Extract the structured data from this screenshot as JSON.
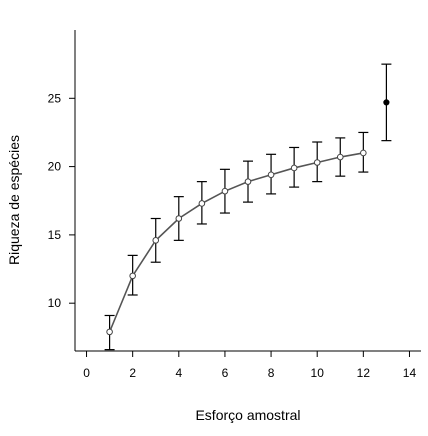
{
  "chart_data": {
    "type": "line",
    "title": "",
    "xlabel": "Esforço amostral",
    "ylabel": "Riqueza de espécies",
    "xlim": [
      -0.5,
      14.5
    ],
    "ylim": [
      6.5,
      30
    ],
    "xticks": [
      "0",
      "2",
      "4",
      "6",
      "8",
      "10",
      "12",
      "14"
    ],
    "yticks": [
      "10",
      "15",
      "20",
      "25"
    ],
    "grid": false,
    "legend": "none",
    "series": [
      {
        "style": "line-open-markers",
        "color": "#555555",
        "points": [
          {
            "x": 1,
            "y": 7.9,
            "lower": 6.6,
            "upper": 9.1
          },
          {
            "x": 2,
            "y": 12.0,
            "lower": 10.6,
            "upper": 13.5
          },
          {
            "x": 3,
            "y": 14.6,
            "lower": 13.0,
            "upper": 16.2
          },
          {
            "x": 4,
            "y": 16.2,
            "lower": 14.6,
            "upper": 17.8
          },
          {
            "x": 5,
            "y": 17.3,
            "lower": 15.8,
            "upper": 18.9
          },
          {
            "x": 6,
            "y": 18.2,
            "lower": 16.6,
            "upper": 19.8
          },
          {
            "x": 7,
            "y": 18.9,
            "lower": 17.4,
            "upper": 20.4
          },
          {
            "x": 8,
            "y": 19.4,
            "lower": 18.0,
            "upper": 20.9
          },
          {
            "x": 9,
            "y": 19.9,
            "lower": 18.5,
            "upper": 21.4
          },
          {
            "x": 10,
            "y": 20.3,
            "lower": 18.9,
            "upper": 21.8
          },
          {
            "x": 11,
            "y": 20.7,
            "lower": 19.3,
            "upper": 22.1
          },
          {
            "x": 12,
            "y": 21.0,
            "lower": 19.6,
            "upper": 22.5
          }
        ]
      },
      {
        "style": "filled-marker",
        "color": "#000000",
        "points": [
          {
            "x": 13,
            "y": 24.7,
            "lower": 21.9,
            "upper": 27.5
          }
        ]
      }
    ]
  }
}
